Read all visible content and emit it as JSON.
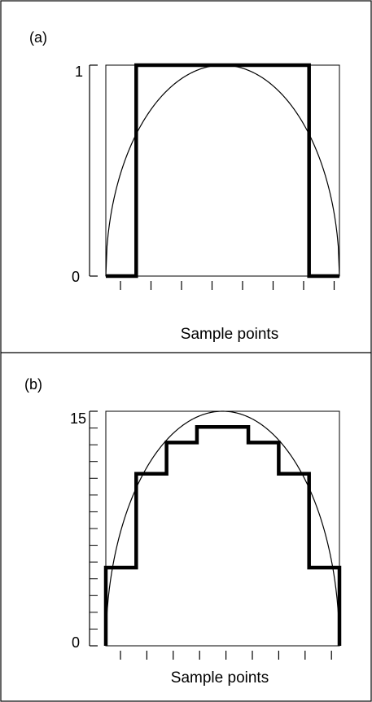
{
  "panels": [
    {
      "id": "a",
      "label": "(a)"
    },
    {
      "id": "b",
      "label": "(b)"
    }
  ],
  "chart_data": [
    {
      "type": "line",
      "panel": "(a)",
      "xlabel": "Sample points",
      "ylabel": "",
      "xlim": [
        0,
        1
      ],
      "ylim": [
        0,
        1
      ],
      "y_ticks": [
        "0",
        "1"
      ],
      "y_minor_ticks": 0,
      "x_tick_count": 8,
      "grid": false,
      "series": [
        {
          "style": "thick-step",
          "x": [
            0,
            0.13,
            0.13,
            0.87,
            0.87,
            1
          ],
          "y": [
            0,
            0,
            1,
            1,
            0,
            0
          ]
        },
        {
          "style": "thin-curve",
          "function": "sqrt(1-(2x-1)^2)",
          "ymax": 1
        }
      ]
    },
    {
      "type": "line",
      "panel": "(b)",
      "xlabel": "Sample points",
      "ylabel": "",
      "xlim": [
        0,
        1
      ],
      "ylim": [
        0,
        15
      ],
      "y_ticks": [
        "0",
        "15"
      ],
      "y_minor_ticks": 14,
      "x_tick_count": 9,
      "grid": false,
      "series": [
        {
          "style": "thick-step",
          "x": [
            0,
            0,
            0.13,
            0.13,
            0.26,
            0.26,
            0.39,
            0.39,
            0.61,
            0.61,
            0.74,
            0.74,
            0.87,
            0.87,
            1,
            1
          ],
          "y": [
            0,
            5,
            5,
            11,
            11,
            13,
            13,
            14,
            14,
            13,
            13,
            11,
            11,
            5,
            5,
            0
          ]
        },
        {
          "style": "thin-curve",
          "function": "sqrt(1-(2x-1)^2)",
          "ymax": 15
        }
      ]
    }
  ]
}
